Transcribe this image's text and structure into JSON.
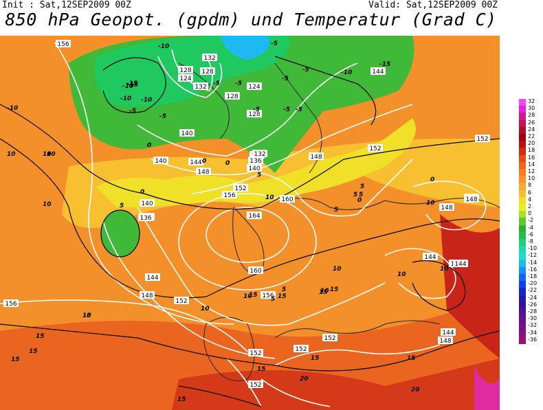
{
  "header": {
    "init": "Init : Sat,12SEP2009 00Z",
    "valid": "Valid: Sat,12SEP2009 00Z",
    "title": "850 hPa Geopot. (gpdm) und Temperatur (Grad C)"
  },
  "legend": {
    "levels": [
      {
        "label": "32",
        "color": "#ff40ff"
      },
      {
        "label": "30",
        "color": "#e81ed8"
      },
      {
        "label": "28",
        "color": "#d01890"
      },
      {
        "label": "26",
        "color": "#c8105a"
      },
      {
        "label": "24",
        "color": "#b00d2a"
      },
      {
        "label": "22",
        "color": "#a00010"
      },
      {
        "label": "20",
        "color": "#c01010"
      },
      {
        "label": "18",
        "color": "#d82810"
      },
      {
        "label": "16",
        "color": "#e84a18"
      },
      {
        "label": "14",
        "color": "#f06420"
      },
      {
        "label": "12",
        "color": "#f87c20"
      },
      {
        "label": "10",
        "color": "#fc9028"
      },
      {
        "label": "8",
        "color": "#f8a830"
      },
      {
        "label": "6",
        "color": "#f8c030"
      },
      {
        "label": "4",
        "color": "#f8dc28"
      },
      {
        "label": "2",
        "color": "#e8f020"
      },
      {
        "label": "0",
        "color": "#a8e028"
      },
      {
        "label": "-2",
        "color": "#60c830"
      },
      {
        "label": "-4",
        "color": "#30b030"
      },
      {
        "label": "-6",
        "color": "#20c050"
      },
      {
        "label": "-8",
        "color": "#20d080"
      },
      {
        "label": "-10",
        "color": "#20d8b0"
      },
      {
        "label": "-12",
        "color": "#20d8d8"
      },
      {
        "label": "-14",
        "color": "#20b8f0"
      },
      {
        "label": "-16",
        "color": "#1890f8"
      },
      {
        "label": "-18",
        "color": "#1068f8"
      },
      {
        "label": "-20",
        "color": "#1040e8"
      },
      {
        "label": "-22",
        "color": "#1828c8"
      },
      {
        "label": "-24",
        "color": "#2818a8"
      },
      {
        "label": "-26",
        "color": "#3810a0"
      },
      {
        "label": "-28",
        "color": "#501098"
      },
      {
        "label": "-30",
        "color": "#681090"
      },
      {
        "label": "-32",
        "color": "#7a1088"
      },
      {
        "label": "-34",
        "color": "#8a1080"
      },
      {
        "label": "-36",
        "color": "#9a1078"
      }
    ]
  },
  "map": {
    "geopotential_labels": [
      "156",
      "132",
      "128",
      "128",
      "124",
      "132",
      "128",
      "124",
      "128",
      "132",
      "144",
      "140",
      "140",
      "144",
      "148",
      "136",
      "132",
      "136",
      "140",
      "152",
      "156",
      "160",
      "164",
      "144",
      "148",
      "152",
      "156",
      "160",
      "140",
      "136",
      "144",
      "148",
      "152",
      "156",
      "152",
      "152",
      "152",
      "152",
      "148",
      "148",
      "148",
      "144",
      "152",
      "144",
      "144",
      "148"
    ],
    "temperature_labels": [
      "-10",
      "-10",
      "-5",
      "-5",
      "-15",
      "-10",
      "-10",
      "-5",
      "-5",
      "-5",
      "-5",
      "-5",
      "-10",
      "-15",
      "-5",
      "0",
      "-5",
      "0",
      "0",
      "10",
      "10",
      "5",
      "5",
      "5",
      "0",
      "5",
      "0",
      "0",
      "10",
      "5",
      "10",
      "10",
      "10",
      "10",
      "5",
      "5",
      "10",
      "15",
      "15",
      "15",
      "10",
      "10",
      "15",
      "15",
      "15",
      "15",
      "15",
      "20",
      "20",
      "15",
      "15",
      "15",
      "5",
      "10",
      "10",
      "15",
      "10",
      "-10",
      "-15",
      "-5"
    ]
  }
}
